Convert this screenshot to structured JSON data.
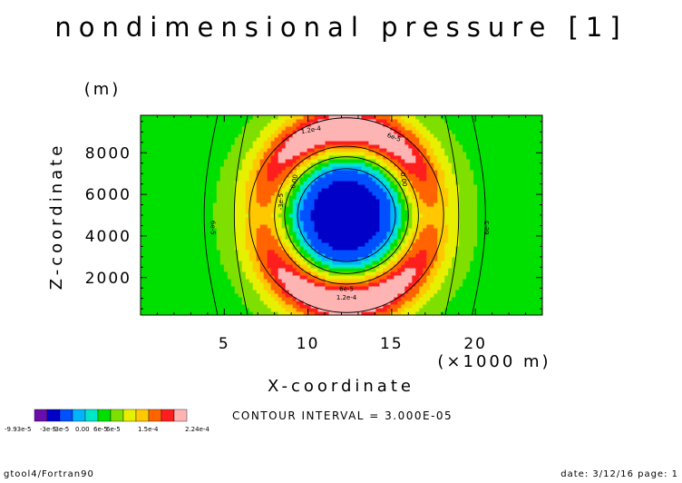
{
  "chart_data": {
    "type": "heatmap",
    "title": "nondimensional pressure [1]",
    "xlabel": "X-coordinate",
    "xunit": "(×1000 m)",
    "ylabel": "Z-coordinate",
    "yunit": "(m)",
    "xlim": [
      0,
      24
    ],
    "ylim": [
      200,
      9800
    ],
    "xticks": [
      5,
      10,
      15,
      20
    ],
    "yticks": [
      2000,
      4000,
      6000,
      8000
    ],
    "contour_labels": [
      {
        "text": "1.2e-4",
        "x": 10.2,
        "y": 9000,
        "rotate": -10
      },
      {
        "text": "6e-5",
        "x": 15.1,
        "y": 8650,
        "rotate": 20
      },
      {
        "text": "0.00",
        "x": 15.6,
        "y": 6700,
        "rotate": 80
      },
      {
        "text": "0.00",
        "x": 9.3,
        "y": 6600,
        "rotate": -80
      },
      {
        "text": "-3e-5",
        "x": 8.5,
        "y": 5650,
        "rotate": -90
      },
      {
        "text": "6e-5",
        "x": 4.2,
        "y": 4400,
        "rotate": 90
      },
      {
        "text": "6e-5",
        "x": 20.8,
        "y": 4400,
        "rotate": -90
      },
      {
        "text": "6e-5",
        "x": 12.3,
        "y": 1350,
        "rotate": 0
      },
      {
        "text": "1.2e-4",
        "x": 12.3,
        "y": 950,
        "rotate": 0
      }
    ]
  },
  "colorbar": {
    "colors": [
      "#6a0dad",
      "#0000c8",
      "#0050ff",
      "#00b4ff",
      "#00e6c8",
      "#00e000",
      "#7fe000",
      "#e6f000",
      "#ffc800",
      "#ff6400",
      "#ff1e1e",
      "#ffb4b4"
    ],
    "labels": [
      "-9.93e-5",
      "-3e-5",
      "-3e-5",
      "0.00",
      "6e-5",
      "6e-5",
      "1.5e-4",
      "2.24e-4"
    ]
  },
  "contour_interval": "CONTOUR INTERVAL = 3.000E-05",
  "footer": {
    "left": "gtool4/Fortran90",
    "right": "date: 3/12/16 page: 1"
  }
}
